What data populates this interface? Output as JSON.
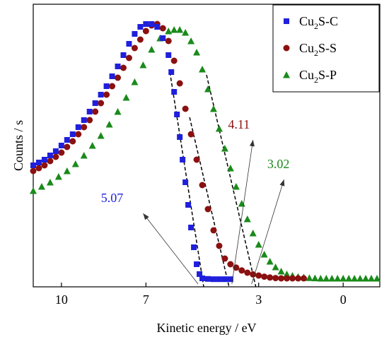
{
  "chart_data": {
    "type": "scatter",
    "title": "",
    "xlabel": "Kinetic energy / eV",
    "ylabel": "Counts / s",
    "xlim": [
      11.0,
      -1.3
    ],
    "x_reversed": true,
    "xticks": [
      10,
      7,
      3,
      0
    ],
    "yticks_shown": false,
    "ylim": [
      0,
      1.0
    ],
    "grid": false,
    "legend_position": "top-right",
    "series": [
      {
        "name_base": "Cu",
        "name_sub": "2",
        "name_rest": "S-C",
        "marker": "square",
        "color": "#1f1fdc",
        "points": [
          [
            11.0,
            0.43
          ],
          [
            10.8,
            0.44
          ],
          [
            10.6,
            0.45
          ],
          [
            10.4,
            0.465
          ],
          [
            10.2,
            0.48
          ],
          [
            10.0,
            0.5
          ],
          [
            9.8,
            0.52
          ],
          [
            9.6,
            0.54
          ],
          [
            9.4,
            0.565
          ],
          [
            9.2,
            0.59
          ],
          [
            9.0,
            0.62
          ],
          [
            8.8,
            0.65
          ],
          [
            8.6,
            0.68
          ],
          [
            8.4,
            0.71
          ],
          [
            8.2,
            0.745
          ],
          [
            8.0,
            0.78
          ],
          [
            7.8,
            0.82
          ],
          [
            7.6,
            0.86
          ],
          [
            7.4,
            0.895
          ],
          [
            7.2,
            0.92
          ],
          [
            7.0,
            0.93
          ],
          [
            6.8,
            0.93
          ],
          [
            6.6,
            0.92
          ],
          [
            6.4,
            0.88
          ],
          [
            6.2,
            0.82
          ],
          [
            6.1,
            0.76
          ],
          [
            6.0,
            0.69
          ],
          [
            5.9,
            0.61
          ],
          [
            5.8,
            0.53
          ],
          [
            5.7,
            0.45
          ],
          [
            5.6,
            0.37
          ],
          [
            5.5,
            0.29
          ],
          [
            5.4,
            0.21
          ],
          [
            5.3,
            0.14
          ],
          [
            5.2,
            0.08
          ],
          [
            5.1,
            0.045
          ],
          [
            5.0,
            0.03
          ],
          [
            4.8,
            0.028
          ],
          [
            4.6,
            0.027
          ],
          [
            4.4,
            0.027
          ],
          [
            4.2,
            0.027
          ],
          [
            4.0,
            0.027
          ]
        ]
      },
      {
        "name_base": "Cu",
        "name_sub": "2",
        "name_rest": "S-S",
        "marker": "circle",
        "color": "#8b1010",
        "points": [
          [
            11.0,
            0.41
          ],
          [
            10.8,
            0.42
          ],
          [
            10.6,
            0.43
          ],
          [
            10.4,
            0.445
          ],
          [
            10.2,
            0.46
          ],
          [
            10.0,
            0.475
          ],
          [
            9.8,
            0.495
          ],
          [
            9.6,
            0.515
          ],
          [
            9.4,
            0.54
          ],
          [
            9.2,
            0.565
          ],
          [
            9.0,
            0.59
          ],
          [
            8.8,
            0.62
          ],
          [
            8.6,
            0.65
          ],
          [
            8.4,
            0.68
          ],
          [
            8.2,
            0.71
          ],
          [
            8.0,
            0.74
          ],
          [
            7.8,
            0.775
          ],
          [
            7.6,
            0.81
          ],
          [
            7.4,
            0.845
          ],
          [
            7.2,
            0.875
          ],
          [
            7.0,
            0.905
          ],
          [
            6.8,
            0.925
          ],
          [
            6.6,
            0.93
          ],
          [
            6.4,
            0.915
          ],
          [
            6.2,
            0.87
          ],
          [
            6.0,
            0.8
          ],
          [
            5.8,
            0.72
          ],
          [
            5.6,
            0.63
          ],
          [
            5.4,
            0.54
          ],
          [
            5.2,
            0.45
          ],
          [
            5.0,
            0.36
          ],
          [
            4.8,
            0.275
          ],
          [
            4.6,
            0.2
          ],
          [
            4.4,
            0.145
          ],
          [
            4.2,
            0.1
          ],
          [
            4.0,
            0.08
          ],
          [
            3.8,
            0.068
          ],
          [
            3.6,
            0.058
          ],
          [
            3.4,
            0.05
          ],
          [
            3.2,
            0.044
          ],
          [
            3.0,
            0.04
          ],
          [
            2.8,
            0.036
          ],
          [
            2.6,
            0.033
          ],
          [
            2.4,
            0.031
          ],
          [
            2.2,
            0.03
          ],
          [
            2.0,
            0.03
          ],
          [
            1.8,
            0.03
          ],
          [
            1.6,
            0.03
          ],
          [
            1.4,
            0.03
          ]
        ]
      },
      {
        "name_base": "Cu",
        "name_sub": "2",
        "name_rest": "S-P",
        "marker": "triangle",
        "color": "#1a8a1a",
        "points": [
          [
            11.0,
            0.34
          ],
          [
            10.7,
            0.355
          ],
          [
            10.4,
            0.37
          ],
          [
            10.1,
            0.39
          ],
          [
            9.8,
            0.41
          ],
          [
            9.5,
            0.435
          ],
          [
            9.2,
            0.465
          ],
          [
            8.9,
            0.5
          ],
          [
            8.6,
            0.535
          ],
          [
            8.3,
            0.575
          ],
          [
            8.0,
            0.62
          ],
          [
            7.7,
            0.67
          ],
          [
            7.4,
            0.725
          ],
          [
            7.1,
            0.785
          ],
          [
            6.8,
            0.84
          ],
          [
            6.5,
            0.88
          ],
          [
            6.2,
            0.905
          ],
          [
            6.0,
            0.91
          ],
          [
            5.8,
            0.91
          ],
          [
            5.6,
            0.9
          ],
          [
            5.4,
            0.87
          ],
          [
            5.2,
            0.83
          ],
          [
            5.0,
            0.77
          ],
          [
            4.8,
            0.7
          ],
          [
            4.6,
            0.63
          ],
          [
            4.4,
            0.56
          ],
          [
            4.2,
            0.49
          ],
          [
            4.0,
            0.42
          ],
          [
            3.8,
            0.355
          ],
          [
            3.6,
            0.295
          ],
          [
            3.4,
            0.24
          ],
          [
            3.2,
            0.19
          ],
          [
            3.0,
            0.15
          ],
          [
            2.8,
            0.115
          ],
          [
            2.6,
            0.09
          ],
          [
            2.4,
            0.07
          ],
          [
            2.2,
            0.055
          ],
          [
            2.0,
            0.045
          ],
          [
            1.8,
            0.04
          ],
          [
            1.6,
            0.036
          ],
          [
            1.4,
            0.034
          ],
          [
            1.2,
            0.032
          ],
          [
            1.0,
            0.031
          ],
          [
            0.8,
            0.03
          ],
          [
            0.6,
            0.03
          ],
          [
            0.4,
            0.03
          ],
          [
            0.2,
            0.03
          ],
          [
            0.0,
            0.03
          ],
          [
            -0.2,
            0.03
          ],
          [
            -0.4,
            0.03
          ],
          [
            -0.6,
            0.03
          ],
          [
            -0.8,
            0.03
          ],
          [
            -1.0,
            0.03
          ],
          [
            -1.2,
            0.03
          ]
        ]
      }
    ],
    "fit_lines": [
      {
        "color": "#000000",
        "from": [
          6.15,
          0.76
        ],
        "to": [
          4.95,
          0.0
        ]
      },
      {
        "color": "#000000",
        "from": [
          5.45,
          0.6
        ],
        "to": [
          4.05,
          0.0
        ]
      },
      {
        "color": "#000000",
        "from": [
          4.85,
          0.75
        ],
        "to": [
          3.1,
          0.0
        ]
      }
    ],
    "annotations": [
      {
        "text": "5.07",
        "color": "#1f1fdc",
        "text_at": [
          8.2,
          0.3
        ],
        "arrow_from": [
          5.15,
          0.01
        ],
        "arrow_to": [
          7.1,
          0.26
        ]
      },
      {
        "text": "4.11",
        "color": "#8b1010",
        "text_at": [
          3.7,
          0.56
        ],
        "arrow_from": [
          3.95,
          0.01
        ],
        "arrow_to": [
          3.2,
          0.52
        ]
      },
      {
        "text": "3.02",
        "color": "#1a8a1a",
        "text_at": [
          2.3,
          0.42
        ],
        "arrow_from": [
          3.25,
          0.01
        ],
        "arrow_to": [
          2.1,
          0.38
        ]
      }
    ]
  }
}
